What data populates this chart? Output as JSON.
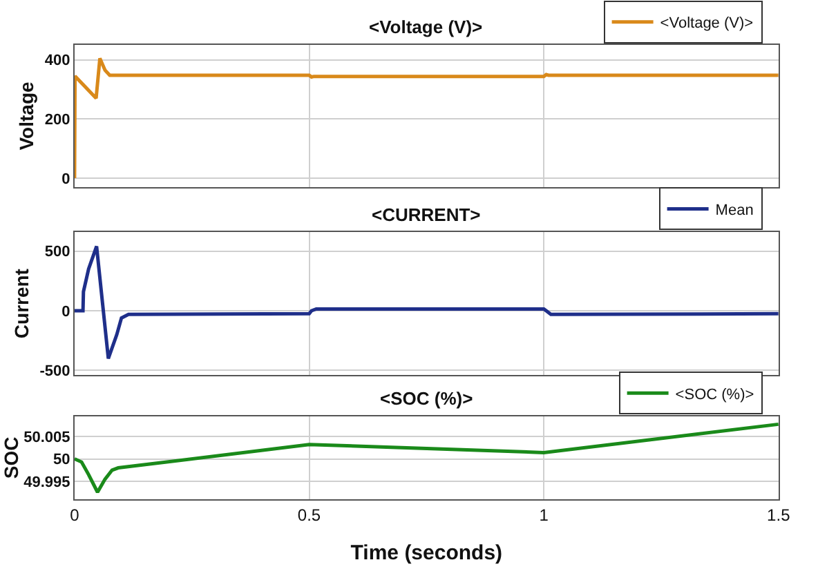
{
  "chart_data": [
    {
      "type": "line",
      "title": "<Voltage (V)>",
      "ylabel": "Voltage",
      "xlim": [
        0,
        1.5
      ],
      "xticks": [
        0,
        0.5,
        1,
        1.5
      ],
      "ylim": [
        -30,
        450
      ],
      "yticks": [
        0,
        200,
        400
      ],
      "grid": true,
      "legend": "top right",
      "tick_labels": "y",
      "x": [
        0,
        0.001,
        0.046,
        0.054,
        0.065,
        0.075,
        0.5,
        0.505,
        0.51,
        1.0,
        1.005,
        1.01,
        1.5
      ],
      "series": [
        {
          "name": "<Voltage (V)>",
          "color": "#d9891a",
          "values": [
            0,
            345,
            270,
            405,
            365,
            348,
            348,
            342,
            344,
            344,
            350,
            348,
            348
          ]
        }
      ]
    },
    {
      "type": "line",
      "title": "<CURRENT>",
      "ylabel": "Current",
      "xlim": [
        0,
        1.5
      ],
      "xticks": [
        0,
        0.5,
        1,
        1.5
      ],
      "ylim": [
        -540,
        660
      ],
      "yticks": [
        -500,
        0,
        500
      ],
      "grid": true,
      "legend": "top right",
      "tick_labels": "y",
      "x": [
        0,
        0.018,
        0.019,
        0.03,
        0.047,
        0.06,
        0.072,
        0.09,
        0.1,
        0.115,
        0.5,
        0.505,
        0.515,
        1.0,
        1.005,
        1.015,
        1.5
      ],
      "series": [
        {
          "name": "Mean",
          "color": "#1f2f8a",
          "values": [
            0,
            0,
            160,
            350,
            540,
            50,
            -400,
            -200,
            -60,
            -30,
            -25,
            0,
            15,
            15,
            0,
            -30,
            -25
          ]
        }
      ]
    },
    {
      "type": "line",
      "title": "<SOC (%)>",
      "ylabel": "SOC",
      "xlabel": "Time (seconds)",
      "xlim": [
        0,
        1.5
      ],
      "xticks": [
        0,
        0.5,
        1,
        1.5
      ],
      "ylim": [
        49.991,
        50.0095
      ],
      "yticks": [
        49.995,
        50,
        50.005
      ],
      "grid": true,
      "legend": "top right",
      "x": [
        0,
        0.015,
        0.03,
        0.049,
        0.065,
        0.08,
        0.093,
        0.5,
        1.0,
        1.5
      ],
      "series": [
        {
          "name": "<SOC (%)>",
          "color": "#1a8a1a",
          "values": [
            50.0,
            49.9993,
            49.9965,
            49.9926,
            49.9955,
            49.9975,
            49.998,
            50.0032,
            50.0014,
            50.0077
          ]
        }
      ]
    }
  ]
}
